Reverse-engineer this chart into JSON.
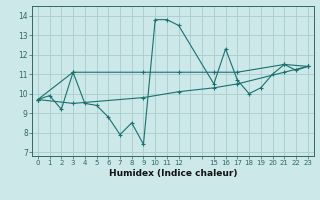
{
  "xlabel": "Humidex (Indice chaleur)",
  "bg_color": "#cce8e8",
  "grid_color": "#aacccc",
  "line_color": "#1a7070",
  "xlim": [
    -0.5,
    23.5
  ],
  "ylim": [
    6.8,
    14.5
  ],
  "yticks": [
    7,
    8,
    9,
    10,
    11,
    12,
    13,
    14
  ],
  "xtick_positions": [
    0,
    1,
    2,
    3,
    4,
    5,
    6,
    7,
    8,
    9,
    10,
    11,
    12,
    13,
    14,
    15,
    16,
    17,
    18,
    19,
    20,
    21,
    22,
    23
  ],
  "xtick_labels": [
    "0",
    "1",
    "2",
    "3",
    "4",
    "5",
    "6",
    "7",
    "8",
    "9",
    "10",
    "11",
    "12",
    "",
    "",
    "15",
    "16",
    "17",
    "18",
    "19",
    "20",
    "21",
    "22",
    "23"
  ],
  "series1_x": [
    0,
    1,
    2,
    3,
    4,
    5,
    6,
    7,
    8,
    9,
    10,
    11,
    12,
    15,
    16,
    17,
    18,
    19,
    20,
    21,
    22,
    23
  ],
  "series1_y": [
    9.7,
    9.9,
    9.2,
    11.1,
    9.5,
    9.4,
    8.8,
    7.9,
    8.5,
    7.4,
    13.8,
    13.8,
    13.5,
    10.5,
    12.3,
    10.7,
    10.0,
    10.3,
    11.0,
    11.5,
    11.2,
    11.4
  ],
  "series2_x": [
    0,
    3,
    9,
    12,
    15,
    17,
    21,
    23
  ],
  "series2_y": [
    9.7,
    11.1,
    11.1,
    11.1,
    11.1,
    11.1,
    11.5,
    11.4
  ],
  "series3_x": [
    0,
    3,
    9,
    12,
    15,
    17,
    21,
    23
  ],
  "series3_y": [
    9.7,
    9.5,
    9.8,
    10.1,
    10.3,
    10.5,
    11.1,
    11.4
  ]
}
